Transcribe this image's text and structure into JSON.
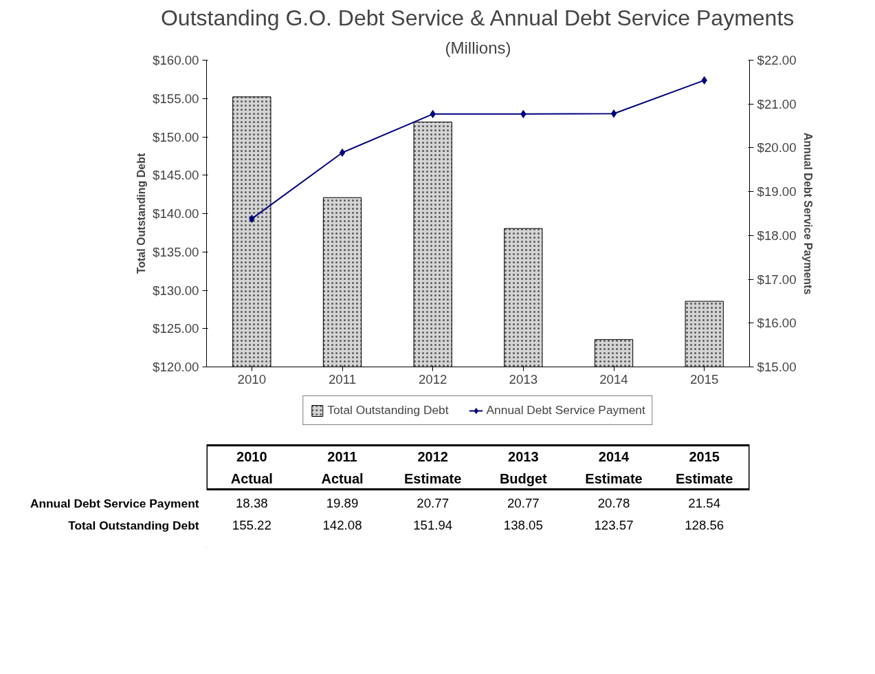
{
  "chart_data": {
    "type": "bar",
    "title": "Outstanding G.O. Debt Service & Annual Debt Service Payments",
    "subtitle": "(Millions)",
    "ylabel": "Total Outstanding Debt",
    "y2label": "Annual Debt Service Payments",
    "categories": [
      "2010",
      "2011",
      "2012",
      "2013",
      "2014",
      "2015"
    ],
    "annotations": [
      "Actual",
      "Actual",
      "Estimate",
      "Budget",
      "Estimate",
      "Estimate"
    ],
    "series": [
      {
        "name": "Annual Debt Service Payment",
        "type": "line",
        "axis": "y2",
        "color": "#000080",
        "marker": "diamond",
        "values": [
          18.38,
          19.89,
          20.77,
          20.77,
          20.78,
          21.54
        ]
      },
      {
        "name": "Total Outstanding Debt",
        "color": "#d4d4d4",
        "values": [
          155.22,
          142.08,
          151.94,
          138.05,
          123.57,
          128.56
        ]
      }
    ],
    "ylim": [
      120,
      160
    ],
    "yticks": [
      {
        "value": 120,
        "label": "$120.00"
      },
      {
        "value": 125,
        "label": "$125.00"
      },
      {
        "value": 130,
        "label": "$130.00"
      },
      {
        "value": 135,
        "label": "$135.00"
      },
      {
        "value": 140,
        "label": "$140.00"
      },
      {
        "value": 145,
        "label": "$145.00"
      },
      {
        "value": 150,
        "label": "$150.00"
      },
      {
        "value": 155,
        "label": "$155.00"
      },
      {
        "value": 160,
        "label": "$160.00"
      }
    ],
    "y2lim": [
      15,
      22
    ],
    "y2ticks": [
      {
        "value": 15,
        "label": "$15.00"
      },
      {
        "value": 16,
        "label": "$16.00"
      },
      {
        "value": 17,
        "label": "$17.00"
      },
      {
        "value": 18,
        "label": "$18.00"
      },
      {
        "value": 19,
        "label": "$19.00"
      },
      {
        "value": 20,
        "label": "$20.00"
      },
      {
        "value": 21,
        "label": "$21.00"
      },
      {
        "value": 22,
        "label": "$22.00"
      }
    ],
    "grid": false,
    "legend": "bottom",
    "data_labels": true
  }
}
